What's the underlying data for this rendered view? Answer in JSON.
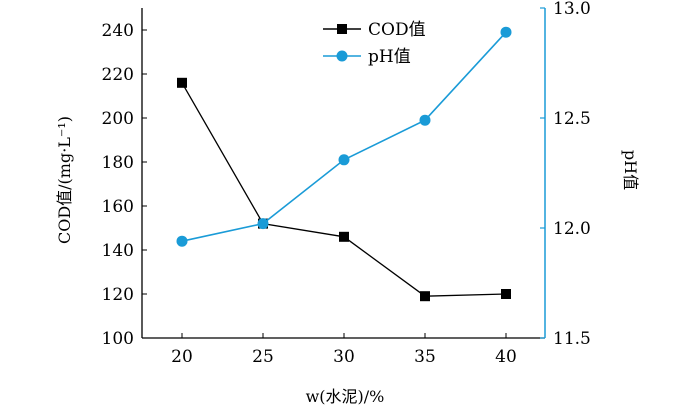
{
  "chart_data": {
    "type": "line",
    "x": [
      20,
      25,
      30,
      35,
      40
    ],
    "xlabel": "w(水泥)/%",
    "xticks": [
      "20",
      "25",
      "30",
      "35",
      "40"
    ],
    "y_left": {
      "label": "COD值/(mg·L⁻¹)",
      "range": [
        100,
        250
      ],
      "ticks": [
        "100",
        "120",
        "140",
        "160",
        "180",
        "200",
        "220",
        "240"
      ]
    },
    "y_right": {
      "label": "pH值",
      "range": [
        11.5,
        13.0
      ],
      "ticks": [
        "11.5",
        "12.0",
        "12.5",
        "13.0"
      ]
    },
    "series": [
      {
        "name": "COD值",
        "axis": "left",
        "marker": "square",
        "color": "#000000",
        "values": [
          216,
          152,
          146,
          119,
          120
        ]
      },
      {
        "name": "pH值",
        "axis": "right",
        "marker": "circle",
        "color": "#1a9bd7",
        "values": [
          11.94,
          12.02,
          12.31,
          12.49,
          12.89
        ]
      }
    ],
    "legend": "top-center",
    "grid": false
  }
}
